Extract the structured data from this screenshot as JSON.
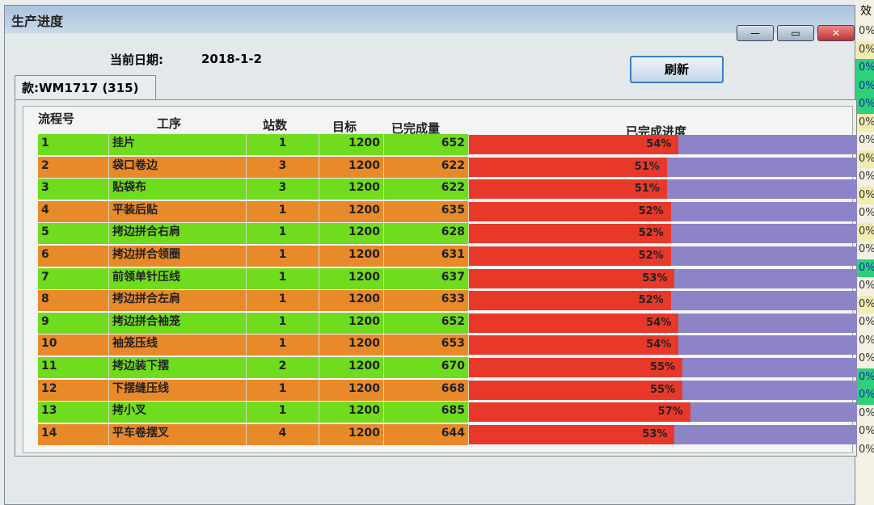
{
  "window": {
    "title": "生产进度",
    "minimize": "—",
    "maximize": "▭",
    "close": "✕"
  },
  "header": {
    "date_label": "当前日期:",
    "date_value": "2018-1-2",
    "refresh_label": "刷新"
  },
  "tab": {
    "label": "款:WM1717 (315)"
  },
  "table": {
    "columns": [
      "流程号",
      "工序",
      "站数",
      "目标",
      "已完成量",
      "已完成进度"
    ],
    "colors": {
      "green": "#6fdc1e",
      "orange": "#e8892a",
      "red": "#e8382a",
      "remaining": "#8d84c8"
    },
    "rows": [
      {
        "no": "1",
        "process": "挂片",
        "stations": "1",
        "target": "1200",
        "done": "652",
        "progress": "54%",
        "progress_value": 54
      },
      {
        "no": "2",
        "process": "袋口卷边",
        "stations": "3",
        "target": "1200",
        "done": "622",
        "progress": "51%",
        "progress_value": 51
      },
      {
        "no": "3",
        "process": "贴袋布",
        "stations": "3",
        "target": "1200",
        "done": "622",
        "progress": "51%",
        "progress_value": 51
      },
      {
        "no": "4",
        "process": "平装后贴",
        "stations": "1",
        "target": "1200",
        "done": "635",
        "progress": "52%",
        "progress_value": 52
      },
      {
        "no": "5",
        "process": "拷边拼合右肩",
        "stations": "1",
        "target": "1200",
        "done": "628",
        "progress": "52%",
        "progress_value": 52
      },
      {
        "no": "6",
        "process": "拷边拼合领圈",
        "stations": "1",
        "target": "1200",
        "done": "631",
        "progress": "52%",
        "progress_value": 52
      },
      {
        "no": "7",
        "process": "前领单针压线",
        "stations": "1",
        "target": "1200",
        "done": "637",
        "progress": "53%",
        "progress_value": 53
      },
      {
        "no": "8",
        "process": "拷边拼合左肩",
        "stations": "1",
        "target": "1200",
        "done": "633",
        "progress": "52%",
        "progress_value": 52
      },
      {
        "no": "9",
        "process": "拷边拼合袖笼",
        "stations": "1",
        "target": "1200",
        "done": "652",
        "progress": "54%",
        "progress_value": 54
      },
      {
        "no": "10",
        "process": "袖笼压线",
        "stations": "1",
        "target": "1200",
        "done": "653",
        "progress": "54%",
        "progress_value": 54
      },
      {
        "no": "11",
        "process": "拷边装下摆",
        "stations": "2",
        "target": "1200",
        "done": "670",
        "progress": "55%",
        "progress_value": 55
      },
      {
        "no": "12",
        "process": "下摆缝压线",
        "stations": "1",
        "target": "1200",
        "done": "668",
        "progress": "55%",
        "progress_value": 55
      },
      {
        "no": "13",
        "process": "拷小叉",
        "stations": "1",
        "target": "1200",
        "done": "685",
        "progress": "57%",
        "progress_value": 57
      },
      {
        "no": "14",
        "process": "平车卷摆叉",
        "stations": "4",
        "target": "1200",
        "done": "644",
        "progress": "53%",
        "progress_value": 53
      }
    ]
  },
  "background_column": {
    "header": "效",
    "cells": [
      {
        "v": "0%",
        "s": ""
      },
      {
        "v": "0%",
        "s": "y"
      },
      {
        "v": "0%",
        "s": "g"
      },
      {
        "v": "0%",
        "s": "g"
      },
      {
        "v": "0%",
        "s": "g"
      },
      {
        "v": "0%",
        "s": "y"
      },
      {
        "v": "0%",
        "s": ""
      },
      {
        "v": "0%",
        "s": "y"
      },
      {
        "v": "0%",
        "s": ""
      },
      {
        "v": "0%",
        "s": "y"
      },
      {
        "v": "0%",
        "s": ""
      },
      {
        "v": "0%",
        "s": "y"
      },
      {
        "v": "0%",
        "s": ""
      },
      {
        "v": "0%",
        "s": "g"
      },
      {
        "v": "0%",
        "s": ""
      },
      {
        "v": "0%",
        "s": "y"
      },
      {
        "v": "0%",
        "s": ""
      },
      {
        "v": "0%",
        "s": ""
      },
      {
        "v": "0%",
        "s": ""
      },
      {
        "v": "0%",
        "s": "g"
      },
      {
        "v": "0%",
        "s": "g"
      },
      {
        "v": "0%",
        "s": ""
      },
      {
        "v": "0%",
        "s": ""
      },
      {
        "v": "0%",
        "s": ""
      }
    ]
  }
}
